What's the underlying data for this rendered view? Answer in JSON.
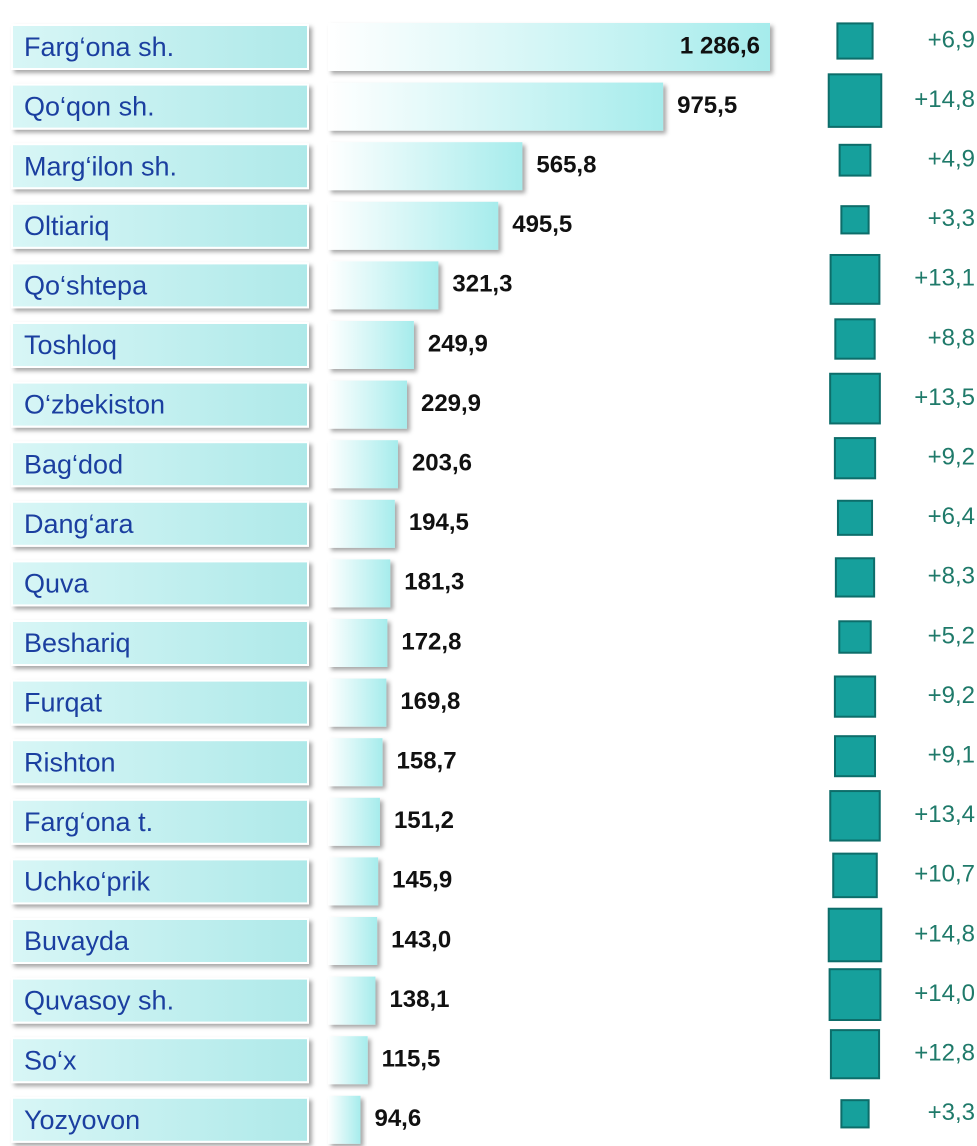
{
  "chart_data": {
    "type": "bar",
    "categories": [
      "Farg‘ona sh.",
      "Qo‘qon sh.",
      "Marg‘ilon sh.",
      "Oltiariq",
      "Qo‘shtepa",
      "Toshloq",
      "O‘zbekiston",
      "Bag‘dod",
      "Dang‘ara",
      "Quva",
      "Beshariq",
      "Furqat",
      "Rishton",
      "Farg‘ona t.",
      "Uchko‘prik",
      "Buvayda",
      "Quvasoy sh.",
      "So‘x",
      "Yozyovon"
    ],
    "series": [
      {
        "values": [
          1286.6,
          975.5,
          565.8,
          495.5,
          321.3,
          249.9,
          229.9,
          203.6,
          194.5,
          181.3,
          172.8,
          169.8,
          158.7,
          151.2,
          145.9,
          143.0,
          138.1,
          115.5,
          94.6
        ],
        "value_labels": [
          "1 286,6",
          "975,5",
          "565,8",
          "495,5",
          "321,3",
          "249,9",
          "229,9",
          "203,6",
          "194,5",
          "181,3",
          "172,8",
          "169,8",
          "158,7",
          "151,2",
          "145,9",
          "143,0",
          "138,1",
          "115,5",
          "94,6"
        ],
        "color": "#a6ecec"
      },
      {
        "values": [
          6.9,
          14.8,
          4.9,
          3.3,
          13.1,
          8.8,
          13.5,
          9.2,
          6.4,
          8.3,
          5.2,
          9.2,
          9.1,
          13.4,
          10.7,
          14.8,
          14.0,
          12.8,
          3.3
        ],
        "value_labels": [
          "+6,9",
          "+14,8",
          "+4,9",
          "+3,3",
          "+13,1",
          "+8,8",
          "+13,5",
          "+9,2",
          "+6,4",
          "+8,3",
          "+5,2",
          "+9,2",
          "+9,1",
          "+13,4",
          "+10,7",
          "+14,8",
          "+14,0",
          "+12,8",
          "+3,3"
        ],
        "color": "#16a09c"
      }
    ]
  }
}
